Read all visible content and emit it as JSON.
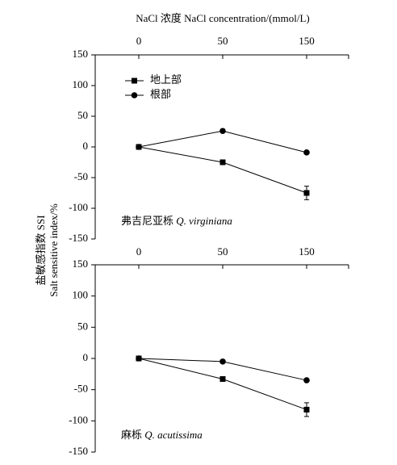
{
  "chart_data": [
    {
      "type": "line",
      "x_label": "NaCl 浓度 NaCl concentration/(mmol/L)",
      "y_label": [
        "盐敏感指数 SSI",
        "Salt sensitive index/%"
      ],
      "annotation_cn": "弗吉尼亚栎",
      "annotation_latin": "Q. virginiana",
      "categories": [
        "0",
        "50",
        "150"
      ],
      "series": [
        {
          "name": "地上部",
          "color": "#000000",
          "marker": "square",
          "values": [
            0,
            -25,
            -75
          ],
          "errors": [
            null,
            null,
            11
          ]
        },
        {
          "name": "根部",
          "color": "#000000",
          "marker": "circle",
          "values": [
            0,
            26,
            -9
          ]
        }
      ],
      "ylim": [
        -150,
        150
      ],
      "yticks": [
        -150,
        -100,
        -50,
        0,
        50,
        100,
        150
      ],
      "legend": "upper left"
    },
    {
      "type": "line",
      "annotation_cn": "麻栎",
      "annotation_latin": "Q. acutissima",
      "categories": [
        "0",
        "50",
        "150"
      ],
      "series": [
        {
          "color": "#000000",
          "marker": "square",
          "values": [
            0,
            -33,
            -82
          ],
          "errors": [
            null,
            null,
            11
          ]
        },
        {
          "color": "#000000",
          "marker": "circle",
          "values": [
            0,
            -5,
            -35
          ]
        }
      ],
      "ylim": [
        -150,
        150
      ],
      "yticks": [
        -150,
        -100,
        -50,
        0,
        50,
        100,
        150
      ]
    }
  ]
}
